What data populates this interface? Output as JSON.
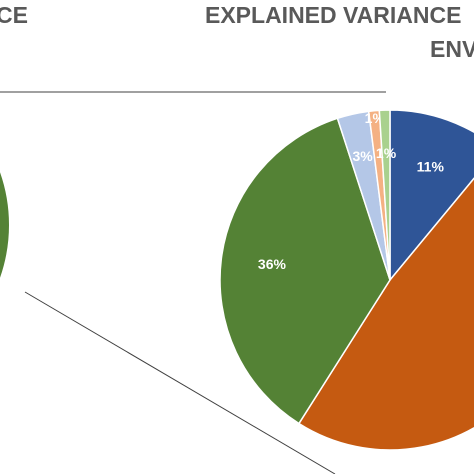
{
  "left_heading": "CE",
  "chart_data": {
    "type": "pie",
    "title": "EXPLAINED VARIANCE",
    "subtitle": "ENV",
    "categories": [
      null,
      null,
      null,
      null,
      null,
      null
    ],
    "values": [
      11,
      48,
      36,
      3,
      1,
      1
    ],
    "value_labels": [
      "11%",
      null,
      "36%",
      "3%",
      "1%",
      "1%"
    ],
    "colors": [
      "#2f5597",
      "#c55a11",
      "#548235",
      "#b4c7e7",
      "#f4b183",
      "#a9d18e"
    ]
  }
}
